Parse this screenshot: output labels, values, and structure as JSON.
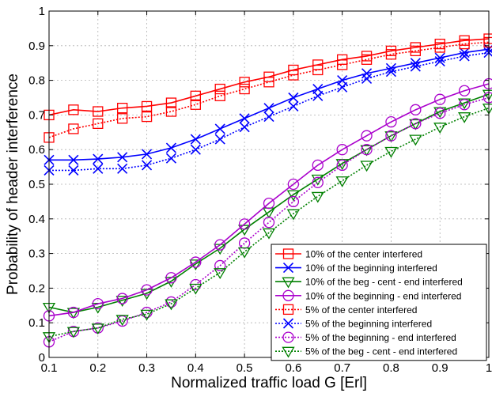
{
  "chart_data": {
    "type": "line",
    "xlabel": "Normalized traffic load G [Erl]",
    "ylabel": "Probability of header interference",
    "xlim": [
      0.1,
      1
    ],
    "ylim": [
      0,
      1
    ],
    "grid": true,
    "legend_position": "bottom-right",
    "x_ticks": [
      "0.1",
      "0.2",
      "0.3",
      "0.4",
      "0.5",
      "0.6",
      "0.7",
      "0.8",
      "0.9",
      "1"
    ],
    "y_ticks": [
      "0",
      "0.1",
      "0.2",
      "0.3",
      "0.4",
      "0.5",
      "0.6",
      "0.7",
      "0.8",
      "0.9",
      "1"
    ],
    "x": [
      0.1,
      0.15,
      0.2,
      0.25,
      0.3,
      0.35,
      0.4,
      0.45,
      0.5,
      0.55,
      0.6,
      0.65,
      0.7,
      0.75,
      0.8,
      0.85,
      0.9,
      0.95,
      1.0
    ],
    "series": [
      {
        "name": "10% of the center interfered",
        "color": "#ff0000",
        "dash": "solid",
        "marker": "square",
        "values": [
          0.7,
          0.715,
          0.71,
          0.72,
          0.725,
          0.735,
          0.755,
          0.775,
          0.795,
          0.81,
          0.83,
          0.845,
          0.86,
          0.87,
          0.885,
          0.895,
          0.905,
          0.915,
          0.92
        ]
      },
      {
        "name": "10% of the beginning interfered",
        "color": "#0000ff",
        "dash": "solid",
        "marker": "x",
        "values": [
          0.57,
          0.57,
          0.573,
          0.578,
          0.587,
          0.605,
          0.63,
          0.66,
          0.69,
          0.72,
          0.75,
          0.775,
          0.8,
          0.82,
          0.835,
          0.85,
          0.865,
          0.88,
          0.89
        ]
      },
      {
        "name": "10% of the beg - cent - end interfered",
        "color": "#008000",
        "dash": "solid",
        "marker": "triangle-down",
        "values": [
          0.145,
          0.13,
          0.145,
          0.165,
          0.185,
          0.22,
          0.27,
          0.315,
          0.37,
          0.42,
          0.47,
          0.515,
          0.56,
          0.6,
          0.64,
          0.675,
          0.71,
          0.735,
          0.76
        ]
      },
      {
        "name": "10% of the beginning - end interfered",
        "color": "#aa00cc",
        "dash": "solid",
        "marker": "circle",
        "values": [
          0.12,
          0.13,
          0.155,
          0.17,
          0.195,
          0.23,
          0.275,
          0.325,
          0.385,
          0.445,
          0.5,
          0.555,
          0.6,
          0.64,
          0.68,
          0.715,
          0.745,
          0.77,
          0.79
        ]
      },
      {
        "name": "5% of the center interfered",
        "color": "#ff0000",
        "dash": "dotted",
        "marker": "square",
        "values": [
          0.635,
          0.66,
          0.675,
          0.69,
          0.695,
          0.71,
          0.73,
          0.755,
          0.775,
          0.795,
          0.815,
          0.83,
          0.845,
          0.86,
          0.875,
          0.885,
          0.895,
          0.905,
          0.91
        ]
      },
      {
        "name": "5% of the beginning interfered",
        "color": "#0000ff",
        "dash": "dotted",
        "marker": "x",
        "values": [
          0.54,
          0.54,
          0.545,
          0.545,
          0.555,
          0.575,
          0.6,
          0.63,
          0.665,
          0.695,
          0.725,
          0.755,
          0.78,
          0.805,
          0.825,
          0.84,
          0.855,
          0.87,
          0.88
        ]
      },
      {
        "name": "5% of the beginning - end interfered",
        "color": "#aa00cc",
        "dash": "dotted",
        "marker": "circle",
        "values": [
          0.045,
          0.075,
          0.085,
          0.105,
          0.13,
          0.16,
          0.21,
          0.265,
          0.33,
          0.39,
          0.45,
          0.505,
          0.555,
          0.6,
          0.64,
          0.675,
          0.705,
          0.73,
          0.75
        ]
      },
      {
        "name": "5% of the beg - cent - end interfered",
        "color": "#008000",
        "dash": "dotted",
        "marker": "triangle-down",
        "values": [
          0.06,
          0.075,
          0.085,
          0.11,
          0.125,
          0.155,
          0.2,
          0.245,
          0.305,
          0.36,
          0.415,
          0.465,
          0.51,
          0.555,
          0.595,
          0.63,
          0.665,
          0.695,
          0.72
        ]
      }
    ]
  }
}
